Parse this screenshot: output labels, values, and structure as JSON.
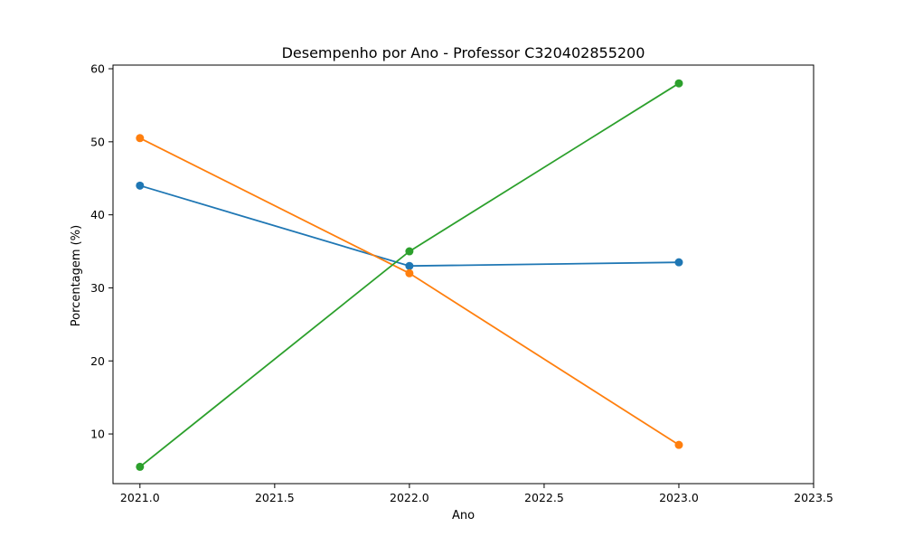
{
  "chart_data": {
    "type": "line",
    "title": "Desempenho por Ano - Professor C320402855200",
    "xlabel": "Ano",
    "ylabel": "Porcentagem (%)",
    "xlim": [
      2020.9,
      2023.5
    ],
    "ylim": [
      3.2,
      60.5
    ],
    "x_ticks": [
      2021.0,
      2021.5,
      2022.0,
      2022.5,
      2023.0,
      2023.5
    ],
    "x_tick_labels": [
      "2021.0",
      "2021.5",
      "2022.0",
      "2022.5",
      "2023.0",
      "2023.5"
    ],
    "y_ticks": [
      10,
      20,
      30,
      40,
      50,
      60
    ],
    "y_tick_labels": [
      "10",
      "20",
      "30",
      "40",
      "50",
      "60"
    ],
    "grid": false,
    "legend": false,
    "x": [
      2021.0,
      2022.0,
      2023.0
    ],
    "series": [
      {
        "values": [
          44.0,
          33.0,
          33.5
        ],
        "color": "#1f77b4"
      },
      {
        "values": [
          50.5,
          32.0,
          8.5
        ],
        "color": "#ff7f0e"
      },
      {
        "values": [
          5.5,
          35.0,
          58.0
        ],
        "color": "#2ca02c"
      }
    ]
  }
}
